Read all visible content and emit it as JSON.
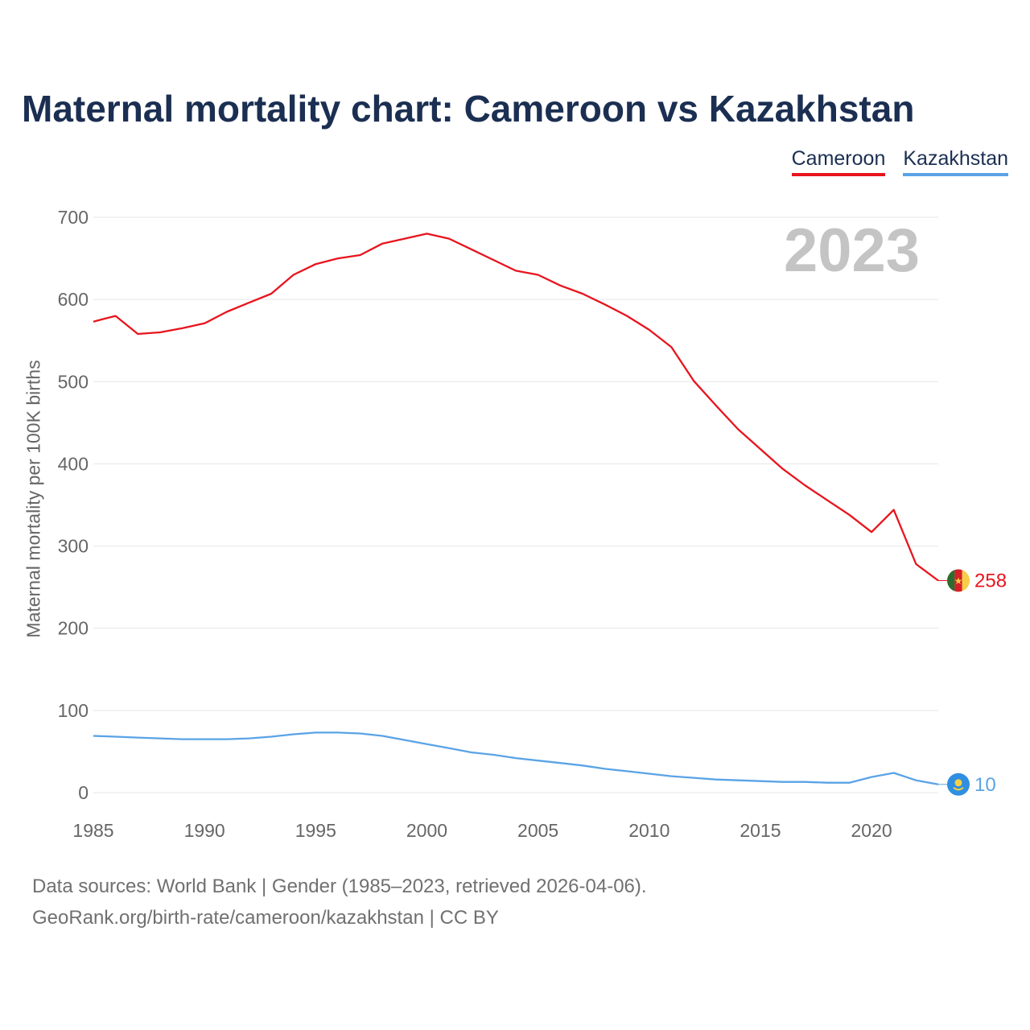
{
  "title": "Maternal mortality chart: Cameroon vs Kazakhstan",
  "year_stamp": "2023",
  "footer": {
    "line1": "Data sources: World Bank | Gender (1985–2023, retrieved 2026-04-06).",
    "line2": "GeoRank.org/birth-rate/cameroon/kazakhstan | CC BY"
  },
  "chart_data": {
    "type": "line",
    "title": "Maternal mortality chart: Cameroon vs Kazakhstan",
    "ylabel": "Maternal mortality per 100K births",
    "xlabel": "",
    "xlim": [
      1985,
      2023
    ],
    "ylim": [
      0,
      700
    ],
    "x_ticks": [
      1985,
      1990,
      1995,
      2000,
      2005,
      2010,
      2015,
      2020
    ],
    "y_ticks": [
      0,
      100,
      200,
      300,
      400,
      500,
      600,
      700
    ],
    "grid": true,
    "legend_position": "top-right",
    "x": [
      1985,
      1986,
      1987,
      1988,
      1989,
      1990,
      1991,
      1992,
      1993,
      1994,
      1995,
      1996,
      1997,
      1998,
      1999,
      2000,
      2001,
      2002,
      2003,
      2004,
      2005,
      2006,
      2007,
      2008,
      2009,
      2010,
      2011,
      2012,
      2013,
      2014,
      2015,
      2016,
      2017,
      2018,
      2019,
      2020,
      2021,
      2022,
      2023
    ],
    "series": [
      {
        "name": "Cameroon",
        "color": "#e8141d",
        "end_label": "258",
        "flag_icon": "cameroon-flag-icon",
        "values": [
          573,
          580,
          558,
          560,
          565,
          571,
          585,
          596,
          607,
          630,
          643,
          650,
          654,
          668,
          674,
          680,
          674,
          661,
          648,
          635,
          630,
          617,
          607,
          594,
          580,
          563,
          542,
          501,
          471,
          442,
          418,
          394,
          374,
          356,
          338,
          317,
          344,
          278,
          258
        ]
      },
      {
        "name": "Kazakhstan",
        "color": "#5aa3e6",
        "end_label": "10",
        "flag_icon": "kazakhstan-flag-icon",
        "values": [
          69,
          68,
          67,
          66,
          65,
          65,
          65,
          66,
          68,
          71,
          73,
          73,
          72,
          69,
          64,
          59,
          54,
          49,
          46,
          42,
          39,
          36,
          33,
          29,
          26,
          23,
          20,
          18,
          16,
          15,
          14,
          13,
          13,
          12,
          12,
          19,
          24,
          15,
          10
        ]
      }
    ]
  }
}
